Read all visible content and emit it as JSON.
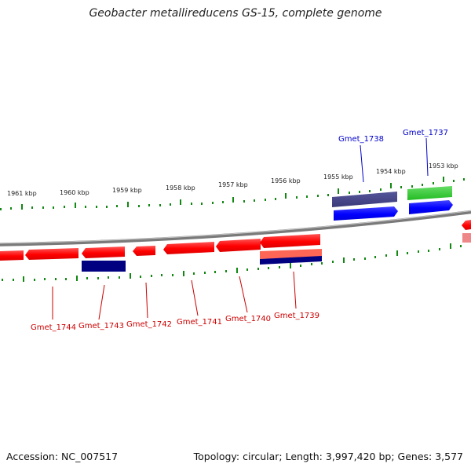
{
  "title": "Geobacter metallireducens GS-15, complete genome",
  "footer": {
    "accession": "Accession: NC_007517",
    "summary": "Topology: circular; Length: 3,997,420 bp; Genes: 3,577"
  },
  "kbp_labels": [
    "1961 kbp",
    "1960 kbp",
    "1959 kbp",
    "1958 kbp",
    "1957 kbp",
    "1956 kbp",
    "1955 kbp",
    "1954 kbp",
    "1953 kbp"
  ],
  "genes": [
    {
      "name": "Gmet_1744",
      "color": "#cc0000"
    },
    {
      "name": "Gmet_1743",
      "color": "#cc0000"
    },
    {
      "name": "Gmet_1742",
      "color": "#cc0000"
    },
    {
      "name": "Gmet_1741",
      "color": "#cc0000"
    },
    {
      "name": "Gmet_1740",
      "color": "#cc0000"
    },
    {
      "name": "Gmet_1739",
      "color": "#cc0000"
    },
    {
      "name": "Gmet_1738",
      "color": "#0000cc"
    },
    {
      "name": "Gmet_1737",
      "color": "#0000cc"
    }
  ],
  "colors": {
    "reverse_feature": "#ff0000",
    "forward_feature": "#0000ff",
    "rna_feature": "#33cc33",
    "dark_feature": "#000080",
    "purple_feature": "#4a4a8c",
    "tick": "#118811",
    "backbone": "#888888"
  }
}
